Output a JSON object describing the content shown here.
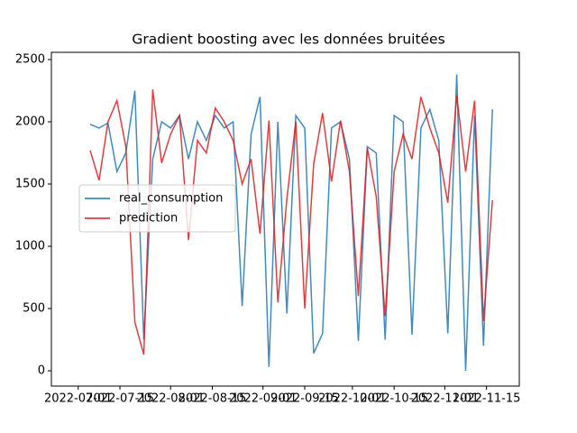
{
  "chart_data": {
    "type": "line",
    "title": "Gradient boosting avec les données bruitées",
    "x": [
      "2022-07-05",
      "2022-07-08",
      "2022-07-11",
      "2022-07-14",
      "2022-07-17",
      "2022-07-20",
      "2022-07-23",
      "2022-07-26",
      "2022-07-29",
      "2022-08-01",
      "2022-08-04",
      "2022-08-07",
      "2022-08-10",
      "2022-08-13",
      "2022-08-16",
      "2022-08-19",
      "2022-08-22",
      "2022-08-25",
      "2022-08-28",
      "2022-08-31",
      "2022-09-03",
      "2022-09-06",
      "2022-09-09",
      "2022-09-12",
      "2022-09-15",
      "2022-09-18",
      "2022-09-21",
      "2022-09-24",
      "2022-09-27",
      "2022-09-30",
      "2022-10-03",
      "2022-10-06",
      "2022-10-09",
      "2022-10-12",
      "2022-10-15",
      "2022-10-18",
      "2022-10-21",
      "2022-10-24",
      "2022-10-27",
      "2022-10-30",
      "2022-11-02",
      "2022-11-05",
      "2022-11-08",
      "2022-11-11",
      "2022-11-14",
      "2022-11-17"
    ],
    "series": [
      {
        "name": "real_consumption",
        "color": "#1f77b4",
        "values": [
          1980,
          1950,
          1990,
          1600,
          1750,
          2250,
          250,
          1700,
          2000,
          1950,
          2050,
          1700,
          2000,
          1850,
          2050,
          1950,
          2000,
          520,
          1900,
          2200,
          30,
          2000,
          460,
          2050,
          1950,
          140,
          300,
          1950,
          2000,
          1700,
          240,
          1800,
          1750,
          250,
          2050,
          2000,
          290,
          1950,
          2100,
          1850,
          300,
          2380,
          0,
          2050,
          200,
          2100
        ]
      },
      {
        "name": "prediction",
        "color": "#e31a1c",
        "values": [
          1770,
          1530,
          2000,
          2170,
          1800,
          390,
          130,
          2260,
          1670,
          1900,
          2050,
          1050,
          1850,
          1750,
          2110,
          2000,
          1850,
          1500,
          1700,
          1100,
          2010,
          550,
          1380,
          2000,
          500,
          1660,
          2070,
          1520,
          2010,
          1600,
          600,
          1790,
          1400,
          440,
          1600,
          1900,
          1700,
          2200,
          1950,
          1750,
          1350,
          2210,
          1600,
          2170,
          400,
          1370
        ]
      }
    ],
    "xlim": [
      "2022-06-22",
      "2022-11-26"
    ],
    "xticks": [
      "2022-07-01",
      "2022-07-15",
      "2022-08-01",
      "2022-08-15",
      "2022-09-01",
      "2022-09-15",
      "2022-10-01",
      "2022-10-15",
      "2022-11-01",
      "2022-11-15"
    ],
    "ylim": [
      -123,
      2558
    ],
    "yticks": [
      0,
      500,
      1000,
      1500,
      2000,
      2500
    ],
    "legend": "center left"
  }
}
